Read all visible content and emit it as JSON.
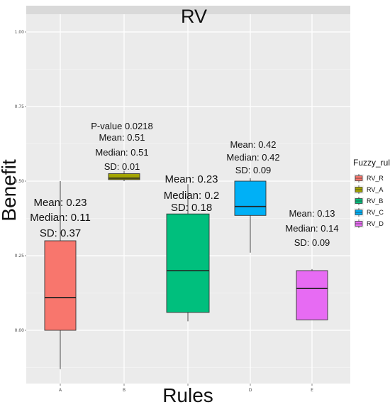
{
  "chart_data": {
    "type": "boxplot",
    "title": "RV",
    "xlabel": "Rules",
    "ylabel": "Benefit",
    "ylim": [
      -0.2,
      1.05
    ],
    "y_ticks": [
      "0.00",
      "0.25",
      "0.50",
      "0.75",
      "1.00"
    ],
    "y_tick_values": [
      0,
      0.25,
      0.5,
      0.75,
      1.0
    ],
    "categories": [
      "A",
      "B",
      "C",
      "D",
      "E"
    ],
    "x_tick_labels": [
      "A",
      "B",
      "",
      "D",
      "E"
    ],
    "grid": true,
    "legend": {
      "title": "Fuzzy_rule",
      "placement": "right",
      "entries": [
        {
          "label": "RV_R",
          "color": "#F8766D"
        },
        {
          "label": "RV_A",
          "color": "#A3A500"
        },
        {
          "label": "RV_B",
          "color": "#00BF7D"
        },
        {
          "label": "RV_C",
          "color": "#00B0F6"
        },
        {
          "label": "RV_D",
          "color": "#E76BF3"
        }
      ]
    },
    "boxes": [
      {
        "category": "A",
        "series": "RV_R",
        "min": -0.13,
        "q1": 0.0,
        "median": 0.11,
        "q3": 0.3,
        "max": 0.5,
        "annotations": [
          "Mean: 0.23",
          "Median: 0.11",
          "SD: 0.37"
        ]
      },
      {
        "category": "B",
        "series": "RV_A",
        "min": 0.5,
        "q1": 0.505,
        "median": 0.51,
        "q3": 0.525,
        "max": 0.535,
        "annotations": [
          "P-value  0.0218",
          "Mean: 0.51",
          "Median: 0.51",
          "SD: 0.01"
        ]
      },
      {
        "category": "C",
        "series": "RV_B",
        "min": 0.03,
        "q1": 0.06,
        "median": 0.2,
        "q3": 0.39,
        "max": 0.49,
        "annotations": [
          "Mean: 0.23",
          "Median: 0.2",
          "SD: 0.18"
        ]
      },
      {
        "category": "D",
        "series": "RV_C",
        "min": 0.26,
        "q1": 0.385,
        "median": 0.415,
        "q3": 0.5,
        "max": 0.51,
        "annotations": [
          "Mean: 0.42",
          "Median: 0.42",
          "SD: 0.09"
        ]
      },
      {
        "category": "E",
        "series": "RV_D",
        "min": 0.035,
        "q1": 0.035,
        "median": 0.14,
        "q3": 0.2,
        "max": 0.205,
        "annotations": [
          "Mean: 0.13",
          "Median: 0.14",
          "SD: 0.09"
        ]
      }
    ]
  }
}
